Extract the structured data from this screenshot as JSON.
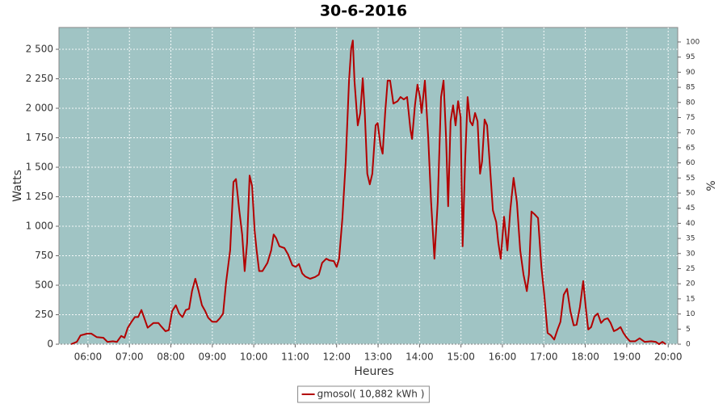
{
  "chart_data": {
    "type": "line",
    "title": "30-6-2016",
    "x_label": "Heures",
    "y_label": "Watts",
    "y2_label": "%",
    "x": [
      5.59,
      5.73,
      5.82,
      5.98,
      6.08,
      6.21,
      6.37,
      6.47,
      6.6,
      6.7,
      6.8,
      6.88,
      6.96,
      7.05,
      7.13,
      7.21,
      7.29,
      7.35,
      7.44,
      7.58,
      7.7,
      7.77,
      7.87,
      7.95,
      8.03,
      8.12,
      8.2,
      8.28,
      8.36,
      8.44,
      8.51,
      8.59,
      8.67,
      8.75,
      8.83,
      8.9,
      9.0,
      9.1,
      9.18,
      9.26,
      9.33,
      9.43,
      9.51,
      9.57,
      9.65,
      9.72,
      9.78,
      9.84,
      9.9,
      9.96,
      10.02,
      10.07,
      10.13,
      10.21,
      10.33,
      10.42,
      10.48,
      10.54,
      10.62,
      10.74,
      10.83,
      10.93,
      11.01,
      11.09,
      11.17,
      11.24,
      11.36,
      11.48,
      11.57,
      11.65,
      11.75,
      11.83,
      11.93,
      12.0,
      12.06,
      12.14,
      12.22,
      12.3,
      12.35,
      12.39,
      12.43,
      12.51,
      12.57,
      12.63,
      12.68,
      12.74,
      12.8,
      12.86,
      12.94,
      12.99,
      13.06,
      13.11,
      13.17,
      13.23,
      13.29,
      13.37,
      13.47,
      13.54,
      13.62,
      13.7,
      13.78,
      13.82,
      13.89,
      13.95,
      14.01,
      14.05,
      14.13,
      14.21,
      14.28,
      14.36,
      14.44,
      14.52,
      14.58,
      14.64,
      14.69,
      14.75,
      14.81,
      14.87,
      14.93,
      14.99,
      15.04,
      15.1,
      15.16,
      15.22,
      15.28,
      15.34,
      15.4,
      15.46,
      15.51,
      15.57,
      15.63,
      15.69,
      15.77,
      15.85,
      15.9,
      15.96,
      16.04,
      16.12,
      16.19,
      16.27,
      16.35,
      16.43,
      16.51,
      16.59,
      16.64,
      16.7,
      16.78,
      16.86,
      16.94,
      17.01,
      17.09,
      17.17,
      17.25,
      17.33,
      17.4,
      17.48,
      17.56,
      17.64,
      17.72,
      17.79,
      17.87,
      17.95,
      18.01,
      18.07,
      18.14,
      18.22,
      18.3,
      18.38,
      18.46,
      18.54,
      18.61,
      18.69,
      18.77,
      18.85,
      18.92,
      19.0,
      19.08,
      19.2,
      19.31,
      19.43,
      19.59,
      19.7,
      19.78,
      19.86,
      19.94
    ],
    "series": [
      {
        "name": "gmosol( 10,882 kWh )",
        "color": "#b30000",
        "values": [
          0,
          20,
          75,
          90,
          90,
          60,
          55,
          20,
          25,
          20,
          70,
          55,
          140,
          190,
          230,
          230,
          290,
          230,
          140,
          180,
          180,
          150,
          110,
          120,
          280,
          330,
          260,
          230,
          290,
          300,
          450,
          555,
          450,
          330,
          280,
          225,
          190,
          190,
          220,
          260,
          520,
          795,
          1375,
          1400,
          1135,
          930,
          620,
          860,
          1430,
          1340,
          965,
          795,
          620,
          620,
          690,
          795,
          930,
          900,
          830,
          815,
          760,
          670,
          655,
          680,
          600,
          575,
          555,
          570,
          590,
          690,
          725,
          710,
          705,
          655,
          725,
          1070,
          1550,
          2235,
          2505,
          2575,
          2235,
          1855,
          1960,
          2255,
          1960,
          1445,
          1355,
          1445,
          1855,
          1875,
          1685,
          1615,
          1960,
          2235,
          2235,
          2040,
          2060,
          2095,
          2075,
          2095,
          1820,
          1740,
          2025,
          2200,
          2095,
          1960,
          2235,
          1755,
          1205,
          725,
          1205,
          2095,
          2235,
          1755,
          1170,
          1890,
          2025,
          1855,
          2060,
          1925,
          830,
          1550,
          2095,
          1890,
          1855,
          1960,
          1890,
          1445,
          1550,
          1905,
          1855,
          1550,
          1135,
          1035,
          865,
          725,
          1080,
          795,
          1135,
          1410,
          1205,
          795,
          590,
          450,
          590,
          1125,
          1100,
          1070,
          655,
          420,
          95,
          75,
          40,
          125,
          190,
          420,
          470,
          280,
          160,
          165,
          315,
          535,
          315,
          125,
          145,
          235,
          260,
          180,
          210,
          220,
          180,
          110,
          125,
          145,
          95,
          55,
          25,
          25,
          50,
          20,
          25,
          20,
          0,
          20,
          0
        ]
      }
    ],
    "xlim": [
      5.3,
      20.23
    ],
    "xticks": [
      {
        "value": 6,
        "label": "06:00"
      },
      {
        "value": 7,
        "label": "07:00"
      },
      {
        "value": 8,
        "label": "08:00"
      },
      {
        "value": 9,
        "label": "09:00"
      },
      {
        "value": 10,
        "label": "10:00"
      },
      {
        "value": 11,
        "label": "11:00"
      },
      {
        "value": 12,
        "label": "12:00"
      },
      {
        "value": 13,
        "label": "13:00"
      },
      {
        "value": 14,
        "label": "14:00"
      },
      {
        "value": 15,
        "label": "15:00"
      },
      {
        "value": 16,
        "label": "16:00"
      },
      {
        "value": 17,
        "label": "17:00"
      },
      {
        "value": 18,
        "label": "18:00"
      },
      {
        "value": 19,
        "label": "19:00"
      },
      {
        "value": 20,
        "label": "20:00"
      }
    ],
    "ylim": [
      0,
      2685
    ],
    "yticks": [
      0,
      250,
      500,
      750,
      {
        "value": 1000,
        "label": "1 000"
      },
      {
        "value": 1250,
        "label": "1 250"
      },
      {
        "value": 1500,
        "label": "1 500"
      },
      {
        "value": 1750,
        "label": "1 750"
      },
      {
        "value": 2000,
        "label": "2 000"
      },
      {
        "value": 2250,
        "label": "2 250"
      },
      {
        "value": 2500,
        "label": "2 500"
      }
    ],
    "y2lim": [
      0,
      104.8
    ],
    "y2ticks": [
      0,
      5,
      10,
      15,
      20,
      25,
      30,
      35,
      40,
      45,
      50,
      55,
      60,
      65,
      70,
      75,
      80,
      85,
      90,
      95,
      100
    ],
    "grid": true,
    "plot_background": "#a0c4c4",
    "legend": "bottom"
  }
}
